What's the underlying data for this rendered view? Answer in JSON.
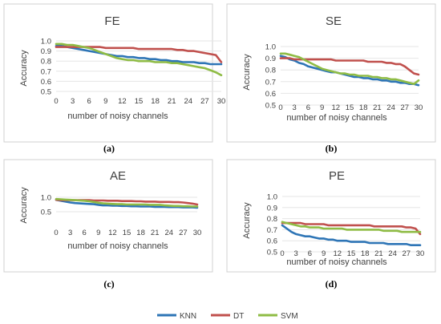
{
  "chart_data": [
    {
      "type": "line",
      "title": "FE",
      "sublabel": "(a)",
      "xlabel": "number of noisy channels",
      "ylabel": "Accuracy",
      "x": [
        0,
        1,
        2,
        3,
        4,
        5,
        6,
        7,
        8,
        9,
        10,
        11,
        12,
        13,
        14,
        15,
        16,
        17,
        18,
        19,
        20,
        21,
        22,
        23,
        24,
        25,
        26,
        27,
        28,
        29,
        30
      ],
      "xticks": [
        0,
        3,
        6,
        9,
        12,
        15,
        18,
        21,
        24,
        27,
        30
      ],
      "yticks": [
        0.5,
        0.6,
        0.7,
        0.8,
        0.9,
        1.0
      ],
      "ytick_labels": [
        "0.5",
        "0.6",
        "0.7",
        "0.8",
        "0.9",
        "1.0"
      ],
      "ylim": [
        0.5,
        1.0
      ],
      "series": [
        {
          "name": "KNN",
          "color": "#2e75b6",
          "values": [
            0.95,
            0.95,
            0.94,
            0.93,
            0.92,
            0.91,
            0.9,
            0.89,
            0.88,
            0.87,
            0.86,
            0.85,
            0.85,
            0.84,
            0.84,
            0.83,
            0.83,
            0.82,
            0.82,
            0.81,
            0.81,
            0.8,
            0.8,
            0.79,
            0.79,
            0.79,
            0.78,
            0.78,
            0.77,
            0.77,
            0.77
          ]
        },
        {
          "name": "DT",
          "color": "#c0504d",
          "values": [
            0.94,
            0.94,
            0.94,
            0.94,
            0.94,
            0.94,
            0.94,
            0.94,
            0.94,
            0.93,
            0.93,
            0.93,
            0.93,
            0.93,
            0.93,
            0.92,
            0.92,
            0.92,
            0.92,
            0.92,
            0.92,
            0.92,
            0.91,
            0.91,
            0.9,
            0.9,
            0.89,
            0.88,
            0.87,
            0.86,
            0.79
          ]
        },
        {
          "name": "SVM",
          "color": "#8fbc45",
          "values": [
            0.97,
            0.97,
            0.96,
            0.96,
            0.95,
            0.94,
            0.93,
            0.91,
            0.89,
            0.87,
            0.85,
            0.83,
            0.82,
            0.81,
            0.81,
            0.8,
            0.8,
            0.8,
            0.79,
            0.79,
            0.79,
            0.78,
            0.78,
            0.77,
            0.76,
            0.75,
            0.74,
            0.73,
            0.71,
            0.69,
            0.66
          ]
        }
      ]
    },
    {
      "type": "line",
      "title": "SE",
      "sublabel": "(b)",
      "xlabel": "number of noisy channels",
      "ylabel": "Accuracy",
      "x": [
        0,
        1,
        2,
        3,
        4,
        5,
        6,
        7,
        8,
        9,
        10,
        11,
        12,
        13,
        14,
        15,
        16,
        17,
        18,
        19,
        20,
        21,
        22,
        23,
        24,
        25,
        26,
        27,
        28,
        29,
        30
      ],
      "xticks": [
        0,
        3,
        6,
        9,
        12,
        15,
        18,
        21,
        24,
        27,
        30
      ],
      "yticks": [
        0.5,
        0.6,
        0.7,
        0.8,
        0.9,
        1.0
      ],
      "ytick_labels": [
        "0.5",
        "0.6",
        "0.7",
        "0.8",
        "0.9",
        "1.0"
      ],
      "ylim": [
        0.5,
        1.0
      ],
      "series": [
        {
          "name": "KNN",
          "color": "#2e75b6",
          "values": [
            0.92,
            0.91,
            0.89,
            0.88,
            0.86,
            0.85,
            0.83,
            0.82,
            0.81,
            0.8,
            0.79,
            0.78,
            0.78,
            0.77,
            0.76,
            0.75,
            0.74,
            0.74,
            0.73,
            0.73,
            0.72,
            0.72,
            0.71,
            0.71,
            0.7,
            0.7,
            0.69,
            0.69,
            0.68,
            0.68,
            0.67
          ]
        },
        {
          "name": "DT",
          "color": "#c0504d",
          "values": [
            0.9,
            0.9,
            0.9,
            0.89,
            0.89,
            0.89,
            0.89,
            0.89,
            0.89,
            0.89,
            0.89,
            0.89,
            0.88,
            0.88,
            0.88,
            0.88,
            0.88,
            0.88,
            0.88,
            0.87,
            0.87,
            0.87,
            0.87,
            0.86,
            0.86,
            0.85,
            0.85,
            0.83,
            0.8,
            0.77,
            0.76
          ]
        },
        {
          "name": "SVM",
          "color": "#8fbc45",
          "values": [
            0.94,
            0.94,
            0.93,
            0.92,
            0.91,
            0.89,
            0.87,
            0.85,
            0.83,
            0.81,
            0.8,
            0.79,
            0.78,
            0.77,
            0.77,
            0.76,
            0.76,
            0.75,
            0.75,
            0.75,
            0.74,
            0.74,
            0.73,
            0.73,
            0.72,
            0.72,
            0.71,
            0.7,
            0.69,
            0.68,
            0.71
          ]
        }
      ]
    },
    {
      "type": "line",
      "title": "AE",
      "sublabel": "(c)",
      "xlabel": "number of noisy channels",
      "ylabel": "Accuracy",
      "x": [
        0,
        1,
        2,
        3,
        4,
        5,
        6,
        7,
        8,
        9,
        10,
        11,
        12,
        13,
        14,
        15,
        16,
        17,
        18,
        19,
        20,
        21,
        22,
        23,
        24,
        25,
        26,
        27,
        28,
        29,
        30
      ],
      "xticks": [
        0,
        3,
        6,
        9,
        12,
        15,
        18,
        21,
        24,
        27,
        30
      ],
      "yticks": [
        0.5,
        1.0
      ],
      "ytick_labels": [
        "0.5",
        "1.0"
      ],
      "ylim": [
        0.5,
        1.0
      ],
      "series": [
        {
          "name": "KNN",
          "color": "#2e75b6",
          "values": [
            0.91,
            0.88,
            0.85,
            0.82,
            0.8,
            0.79,
            0.78,
            0.77,
            0.76,
            0.74,
            0.72,
            0.72,
            0.71,
            0.71,
            0.7,
            0.7,
            0.69,
            0.69,
            0.68,
            0.68,
            0.68,
            0.67,
            0.67,
            0.67,
            0.66,
            0.66,
            0.66,
            0.65,
            0.65,
            0.65,
            0.64
          ]
        },
        {
          "name": "DT",
          "color": "#c0504d",
          "values": [
            0.91,
            0.9,
            0.9,
            0.9,
            0.9,
            0.9,
            0.9,
            0.9,
            0.89,
            0.89,
            0.89,
            0.88,
            0.88,
            0.88,
            0.87,
            0.87,
            0.87,
            0.86,
            0.86,
            0.85,
            0.85,
            0.85,
            0.84,
            0.84,
            0.84,
            0.83,
            0.83,
            0.82,
            0.8,
            0.78,
            0.75
          ]
        },
        {
          "name": "SVM",
          "color": "#8fbc45",
          "values": [
            0.94,
            0.93,
            0.92,
            0.91,
            0.9,
            0.89,
            0.88,
            0.86,
            0.84,
            0.81,
            0.79,
            0.78,
            0.77,
            0.76,
            0.76,
            0.75,
            0.75,
            0.75,
            0.75,
            0.75,
            0.74,
            0.74,
            0.74,
            0.72,
            0.71,
            0.7,
            0.7,
            0.69,
            0.69,
            0.68,
            0.68
          ]
        }
      ]
    },
    {
      "type": "line",
      "title": "PE",
      "sublabel": "(d)",
      "xlabel": "number of noisy channels",
      "ylabel": "Accuracy",
      "x": [
        0,
        1,
        2,
        3,
        4,
        5,
        6,
        7,
        8,
        9,
        10,
        11,
        12,
        13,
        14,
        15,
        16,
        17,
        18,
        19,
        20,
        21,
        22,
        23,
        24,
        25,
        26,
        27,
        28,
        29,
        30
      ],
      "xticks": [
        0,
        3,
        6,
        9,
        12,
        15,
        18,
        21,
        24,
        27,
        30
      ],
      "yticks": [
        0.5,
        0.6,
        0.7,
        0.8,
        0.9,
        1.0
      ],
      "ytick_labels": [
        "0.5",
        "0.6",
        "0.7",
        "0.8",
        "0.9",
        "1.0"
      ],
      "ylim": [
        0.5,
        1.0
      ],
      "series": [
        {
          "name": "KNN",
          "color": "#2e75b6",
          "values": [
            0.74,
            0.71,
            0.68,
            0.66,
            0.65,
            0.64,
            0.64,
            0.63,
            0.62,
            0.62,
            0.61,
            0.61,
            0.6,
            0.6,
            0.6,
            0.59,
            0.59,
            0.59,
            0.59,
            0.58,
            0.58,
            0.58,
            0.58,
            0.57,
            0.57,
            0.57,
            0.57,
            0.57,
            0.56,
            0.56,
            0.56
          ]
        },
        {
          "name": "DT",
          "color": "#c0504d",
          "values": [
            0.76,
            0.76,
            0.76,
            0.76,
            0.76,
            0.75,
            0.75,
            0.75,
            0.75,
            0.75,
            0.74,
            0.74,
            0.74,
            0.74,
            0.74,
            0.74,
            0.74,
            0.74,
            0.74,
            0.74,
            0.73,
            0.73,
            0.73,
            0.73,
            0.73,
            0.73,
            0.73,
            0.72,
            0.72,
            0.71,
            0.66
          ]
        },
        {
          "name": "SVM",
          "color": "#8fbc45",
          "values": [
            0.77,
            0.76,
            0.75,
            0.74,
            0.73,
            0.73,
            0.72,
            0.72,
            0.72,
            0.71,
            0.71,
            0.71,
            0.71,
            0.71,
            0.7,
            0.7,
            0.7,
            0.7,
            0.7,
            0.7,
            0.7,
            0.7,
            0.69,
            0.69,
            0.69,
            0.69,
            0.68,
            0.68,
            0.68,
            0.68,
            0.68
          ]
        }
      ]
    }
  ],
  "legend": {
    "placement": "bottom-center",
    "items": [
      {
        "name": "KNN",
        "color": "#2e75b6"
      },
      {
        "name": "DT",
        "color": "#c0504d"
      },
      {
        "name": "SVM",
        "color": "#8fbc45"
      }
    ]
  }
}
